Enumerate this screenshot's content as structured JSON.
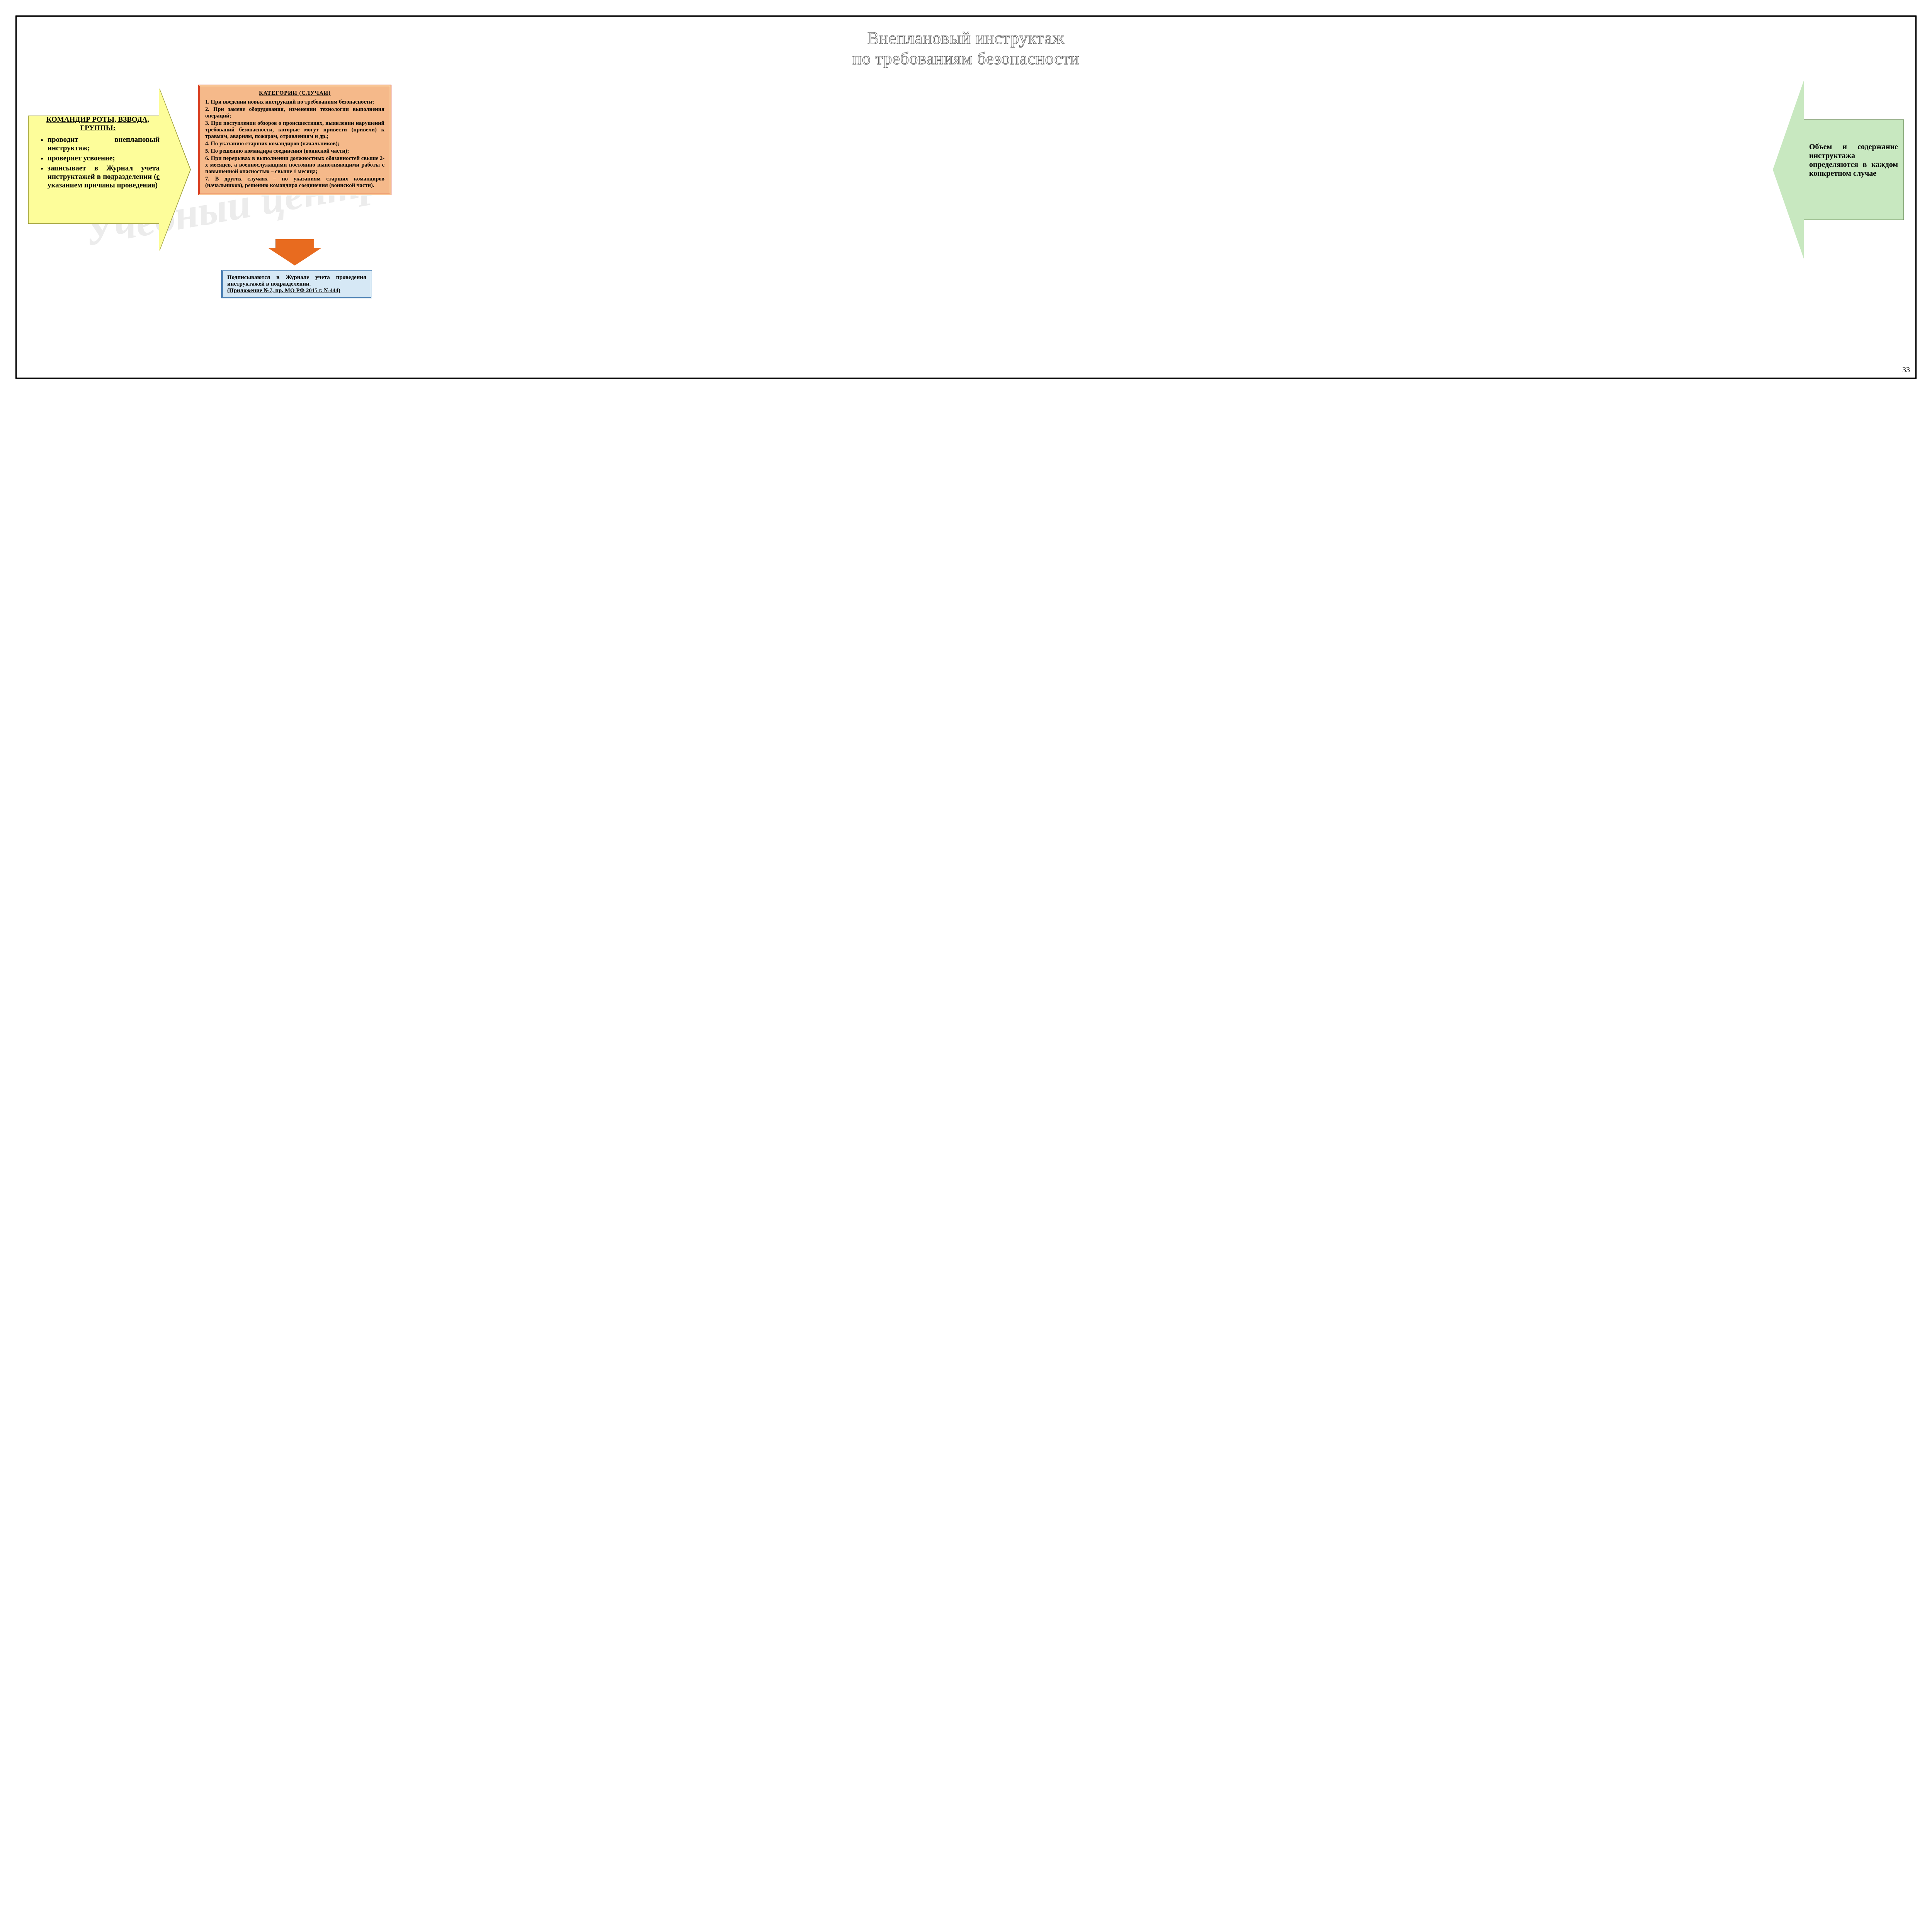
{
  "title_line1": "Внеплановый инструктаж",
  "title_line2": "по требованиям безопасности",
  "watermark": "Учебный центр",
  "left": {
    "heading": "КОМАНДИР РОТЫ, ВЗВОДА, ГРУППЫ:",
    "items": [
      "проводит внеплановый инструктаж;",
      "проверяет усвоение;",
      "записывает в Журнал учета инструктажей в подразделении"
    ],
    "item3_underlined_tail": "(с указанием причины проведения)"
  },
  "center": {
    "title": "КАТЕГОРИИ  (СЛУЧАИ)",
    "items": [
      "1. При введении новых инструкций по требованиям безопасности;",
      "2. При замене оборудования, изменении технологии выполнения операций;",
      "3. При поступлении обзоров о происшествиях, выявлении нарушений требований безопасности, которые могут привести (привели) к травмам, авариям, пожарам, отравлениям и др.;",
      "4. По указанию старших командиров (начальников);",
      "5. По решению командира соединения (воинской части);",
      "6. При перерывах в выполнении должностных обязанностей свыше 2-х месяцев, а военнослужащими постоянно выполняющими работы с повышенной опасностью – свыше 1 месяца;",
      "7. В других случаях – по указаниям старших командиров (начальников), решению командира соединения (воинской части)."
    ]
  },
  "bottom": {
    "line1": "Подписываются в Журнале учета проведения инструктажей в подразделении.",
    "line2": "(Приложение №7, пр. МО РФ 2015 г. №444)"
  },
  "right": {
    "text": "Объем и содержание инструктажа определяются в каждом конкретном случае"
  },
  "page_number": "33",
  "colors": {
    "left_arrow_fill": "#fdfd9a",
    "center_fill": "#f5b98a",
    "center_border": "#d63015",
    "down_arrow_fill": "#e86b1f",
    "bottom_fill": "#d6e8f5",
    "bottom_border": "#2060a0",
    "right_arrow_fill": "#c8e8c0"
  }
}
